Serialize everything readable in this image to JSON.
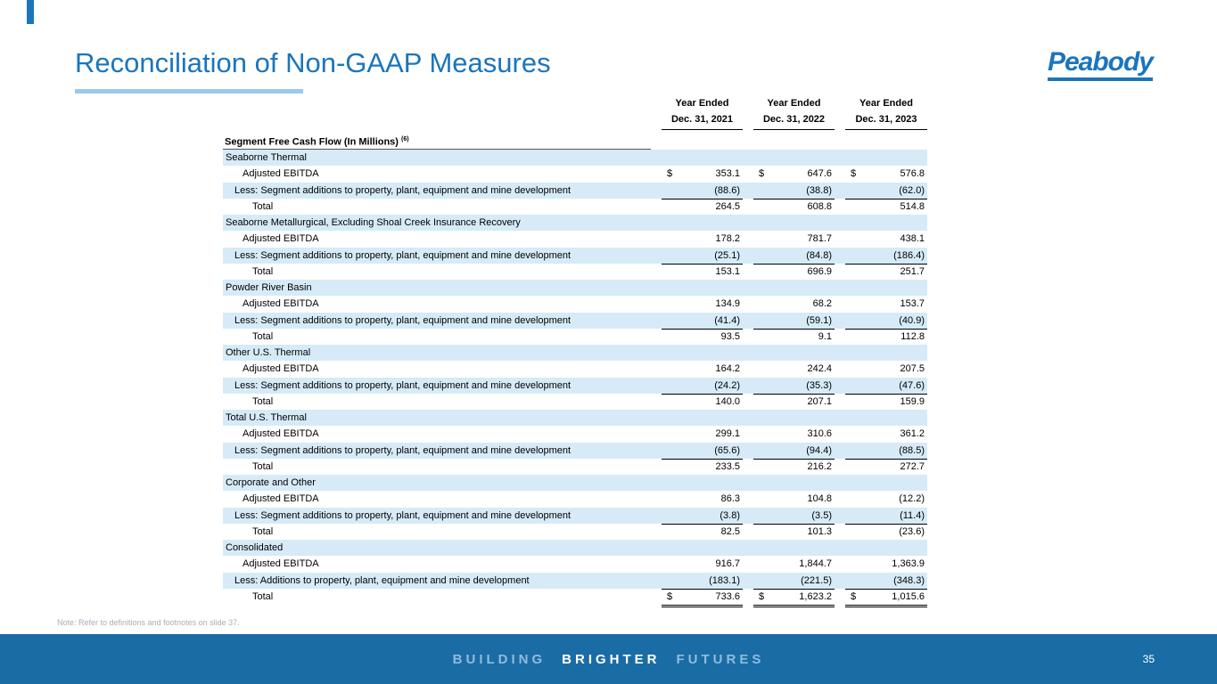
{
  "slide": {
    "title": "Reconciliation of Non-GAAP Measures",
    "logo_text": "Peabody",
    "note": "Note: Refer to definitions and footnotes on slide 37.",
    "footer": {
      "word1": "BUILDING",
      "word2": "BRIGHTER",
      "word3": "FUTURES",
      "page_number": "35"
    },
    "colors": {
      "brand_blue": "#1B75BC",
      "accent_light_blue": "#9CC9E8",
      "row_shade": "#D6EBF7",
      "footer_blue": "#1A6CA5"
    }
  },
  "table": {
    "caption": "Segment Free Cash Flow (In Millions)",
    "caption_footnote": "(6)",
    "col_headers": [
      {
        "line1": "Year Ended",
        "line2": "Dec. 31, 2021"
      },
      {
        "line1": "Year Ended",
        "line2": "Dec. 31, 2022"
      },
      {
        "line1": "Year Ended",
        "line2": "Dec. 31, 2023"
      }
    ],
    "sections": [
      {
        "name": "Seaborne Thermal",
        "rows": [
          {
            "type": "ebitda",
            "label": "Adjusted EBITDA",
            "dollar": true,
            "values": [
              "353.1",
              "647.6",
              "576.8"
            ]
          },
          {
            "type": "less",
            "label": "Less: Segment additions to property, plant, equipment and mine development",
            "rule": "single",
            "values": [
              "(88.6)",
              "(38.8)",
              "(62.0)"
            ]
          },
          {
            "type": "total",
            "label": "Total",
            "values": [
              "264.5",
              "608.8",
              "514.8"
            ]
          }
        ]
      },
      {
        "name": "Seaborne Metallurgical, Excluding Shoal Creek Insurance Recovery",
        "rows": [
          {
            "type": "ebitda",
            "label": "Adjusted EBITDA",
            "values": [
              "178.2",
              "781.7",
              "438.1"
            ]
          },
          {
            "type": "less",
            "label": "Less: Segment additions to property, plant, equipment and mine development",
            "rule": "single",
            "values": [
              "(25.1)",
              "(84.8)",
              "(186.4)"
            ]
          },
          {
            "type": "total",
            "label": "Total",
            "values": [
              "153.1",
              "696.9",
              "251.7"
            ]
          }
        ]
      },
      {
        "name": "Powder River Basin",
        "rows": [
          {
            "type": "ebitda",
            "label": "Adjusted EBITDA",
            "values": [
              "134.9",
              "68.2",
              "153.7"
            ]
          },
          {
            "type": "less",
            "label": "Less: Segment additions to property, plant, equipment and mine development",
            "rule": "single",
            "values": [
              "(41.4)",
              "(59.1)",
              "(40.9)"
            ]
          },
          {
            "type": "total",
            "label": "Total",
            "values": [
              "93.5",
              "9.1",
              "112.8"
            ]
          }
        ]
      },
      {
        "name": "Other U.S. Thermal",
        "rows": [
          {
            "type": "ebitda",
            "label": "Adjusted EBITDA",
            "values": [
              "164.2",
              "242.4",
              "207.5"
            ]
          },
          {
            "type": "less",
            "label": "Less: Segment additions to property, plant, equipment and mine development",
            "rule": "single",
            "values": [
              "(24.2)",
              "(35.3)",
              "(47.6)"
            ]
          },
          {
            "type": "total",
            "label": "Total",
            "values": [
              "140.0",
              "207.1",
              "159.9"
            ]
          }
        ]
      },
      {
        "name": "Total U.S. Thermal",
        "rows": [
          {
            "type": "ebitda",
            "label": "Adjusted EBITDA",
            "values": [
              "299.1",
              "310.6",
              "361.2"
            ]
          },
          {
            "type": "less",
            "label": "Less: Segment additions to property, plant, equipment and mine development",
            "rule": "single",
            "values": [
              "(65.6)",
              "(94.4)",
              "(88.5)"
            ]
          },
          {
            "type": "total",
            "label": "Total",
            "values": [
              "233.5",
              "216.2",
              "272.7"
            ]
          }
        ]
      },
      {
        "name": "Corporate and Other",
        "rows": [
          {
            "type": "ebitda",
            "label": "Adjusted EBITDA",
            "values": [
              "86.3",
              "104.8",
              "(12.2)"
            ]
          },
          {
            "type": "less",
            "label": "Less: Segment additions to property, plant, equipment and mine development",
            "rule": "single",
            "values": [
              "(3.8)",
              "(3.5)",
              "(11.4)"
            ]
          },
          {
            "type": "total",
            "label": "Total",
            "values": [
              "82.5",
              "101.3",
              "(23.6)"
            ]
          }
        ]
      },
      {
        "name": "Consolidated",
        "rows": [
          {
            "type": "ebitda",
            "label": "Adjusted EBITDA",
            "values": [
              "916.7",
              "1,844.7",
              "1,363.9"
            ]
          },
          {
            "type": "less",
            "label": "Less: Additions to property, plant, equipment and mine development",
            "rule": "single",
            "values": [
              "(183.1)",
              "(221.5)",
              "(348.3)"
            ]
          },
          {
            "type": "total",
            "label": "Total",
            "dollar": true,
            "rule": "double",
            "values": [
              "733.6",
              "1,623.2",
              "1,015.6"
            ]
          }
        ]
      }
    ]
  }
}
